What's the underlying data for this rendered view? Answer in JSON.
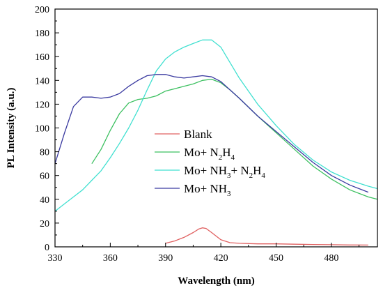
{
  "chart_data": {
    "type": "line",
    "xlabel": "Wavelength (nm)",
    "ylabel": "PL Intensity (a.u.)",
    "xlim": [
      330,
      505
    ],
    "ylim": [
      0,
      200
    ],
    "xticks": [
      330,
      360,
      390,
      420,
      450,
      480
    ],
    "yticks": [
      0,
      20,
      40,
      60,
      80,
      100,
      120,
      140,
      160,
      180,
      200
    ],
    "grid": false,
    "legend_position": "center",
    "series": [
      {
        "name": "Blank",
        "label_main": "Blank",
        "label_parts": [
          {
            "t": "Blank",
            "sub": false
          }
        ],
        "color": "#e06060",
        "x": [
          390,
          395,
          400,
          405,
          408,
          410,
          412,
          415,
          420,
          425,
          430,
          440,
          450,
          460,
          470,
          480,
          490,
          500
        ],
        "y": [
          3,
          5,
          8,
          12,
          15,
          16,
          15.5,
          12,
          6,
          3.5,
          3,
          2.5,
          2.5,
          2.2,
          2,
          1.8,
          1.6,
          1.5
        ]
      },
      {
        "name": "Mo+ N2H4",
        "label_parts": [
          {
            "t": "Mo+ N",
            "sub": false
          },
          {
            "t": "2",
            "sub": true
          },
          {
            "t": "H",
            "sub": false
          },
          {
            "t": "4",
            "sub": true
          }
        ],
        "color": "#3cc060",
        "x": [
          350,
          355,
          360,
          365,
          370,
          375,
          380,
          385,
          390,
          395,
          400,
          405,
          410,
          415,
          420,
          425,
          430,
          440,
          450,
          460,
          470,
          480,
          490,
          500,
          505
        ],
        "y": [
          70,
          82,
          98,
          112,
          121,
          124,
          125,
          127,
          131,
          133,
          135,
          137,
          140,
          141,
          138,
          132,
          125,
          110,
          96,
          82,
          68,
          57,
          48,
          42,
          40
        ]
      },
      {
        "name": "Mo+ NH3+ N2H4",
        "label_parts": [
          {
            "t": "Mo+ NH",
            "sub": false
          },
          {
            "t": "3",
            "sub": true
          },
          {
            "t": "+ N",
            "sub": false
          },
          {
            "t": "2",
            "sub": true
          },
          {
            "t": "H",
            "sub": false
          },
          {
            "t": "4",
            "sub": true
          }
        ],
        "color": "#40e0d0",
        "x": [
          330,
          335,
          340,
          345,
          350,
          355,
          360,
          365,
          370,
          375,
          380,
          385,
          390,
          395,
          400,
          405,
          410,
          415,
          420,
          425,
          430,
          440,
          450,
          460,
          470,
          480,
          490,
          500,
          505
        ],
        "y": [
          30,
          36,
          42,
          48,
          56,
          64,
          75,
          87,
          100,
          115,
          132,
          148,
          158,
          164,
          168,
          171,
          174,
          174,
          168,
          155,
          142,
          120,
          102,
          86,
          73,
          63,
          56,
          51,
          49
        ]
      },
      {
        "name": "Mo+ NH3",
        "label_parts": [
          {
            "t": "Mo+ NH",
            "sub": false
          },
          {
            "t": "3",
            "sub": true
          }
        ],
        "color": "#3a3aa0",
        "x": [
          330,
          335,
          340,
          345,
          350,
          355,
          360,
          365,
          370,
          375,
          380,
          385,
          390,
          395,
          400,
          405,
          410,
          415,
          420,
          425,
          430,
          440,
          450,
          460,
          470,
          480,
          490,
          500
        ],
        "y": [
          70,
          95,
          118,
          126,
          126,
          125,
          126,
          129,
          135,
          140,
          144,
          145,
          145,
          143,
          142,
          143,
          144,
          143,
          139,
          132,
          125,
          110,
          97,
          84,
          71,
          60,
          52,
          46
        ]
      }
    ]
  }
}
